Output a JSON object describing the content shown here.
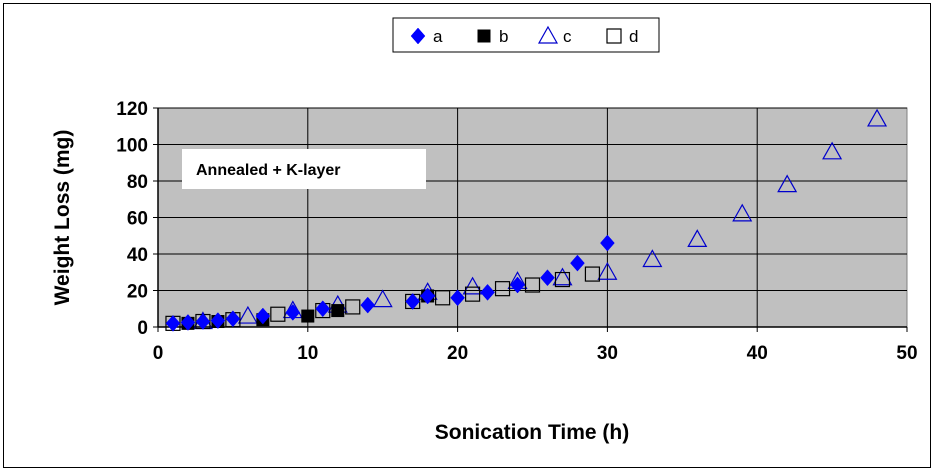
{
  "chart_data": {
    "type": "scatter",
    "title": "",
    "xlabel": "Sonication Time (h)",
    "ylabel": "Weight Loss (mg)",
    "xlim": [
      0,
      50
    ],
    "ylim": [
      0,
      120
    ],
    "xticks": [
      0,
      10,
      20,
      30,
      40,
      50
    ],
    "yticks": [
      0,
      20,
      40,
      60,
      80,
      100,
      120
    ],
    "grid": "both",
    "plot_background": "#c0c0c0",
    "legend_position": "top-center",
    "annotation": "Annealed + K-layer",
    "series": [
      {
        "name": "a",
        "marker": "filled-diamond",
        "color": "#0000ff",
        "x": [
          1,
          2,
          3,
          4,
          5,
          7,
          9,
          11,
          14,
          17,
          18,
          20,
          22,
          24,
          26,
          28,
          30
        ],
        "y": [
          2,
          2.5,
          3,
          3.5,
          4.5,
          6,
          8,
          10,
          12,
          14,
          17,
          16,
          19,
          23,
          27,
          35,
          46
        ]
      },
      {
        "name": "b",
        "marker": "filled-square",
        "color": "#000000",
        "x": [
          2,
          4,
          7,
          10,
          12,
          18
        ],
        "y": [
          2,
          3,
          4,
          6,
          9,
          17
        ]
      },
      {
        "name": "c",
        "marker": "open-triangle",
        "color": "#0000cc",
        "x": [
          3,
          6,
          9,
          12,
          15,
          18,
          21,
          24,
          27,
          30,
          33,
          36,
          39,
          42,
          45,
          48
        ],
        "y": [
          3,
          6,
          9,
          12,
          15,
          19,
          22,
          25,
          27,
          30,
          37,
          48,
          62,
          78,
          96,
          114
        ]
      },
      {
        "name": "d",
        "marker": "open-square",
        "color": "#000000",
        "x": [
          1,
          3,
          5,
          8,
          11,
          13,
          17,
          19,
          21,
          23,
          25,
          27,
          29
        ],
        "y": [
          2,
          3,
          4,
          7,
          9,
          11,
          14,
          16,
          18,
          21,
          23,
          26,
          29
        ]
      }
    ]
  }
}
